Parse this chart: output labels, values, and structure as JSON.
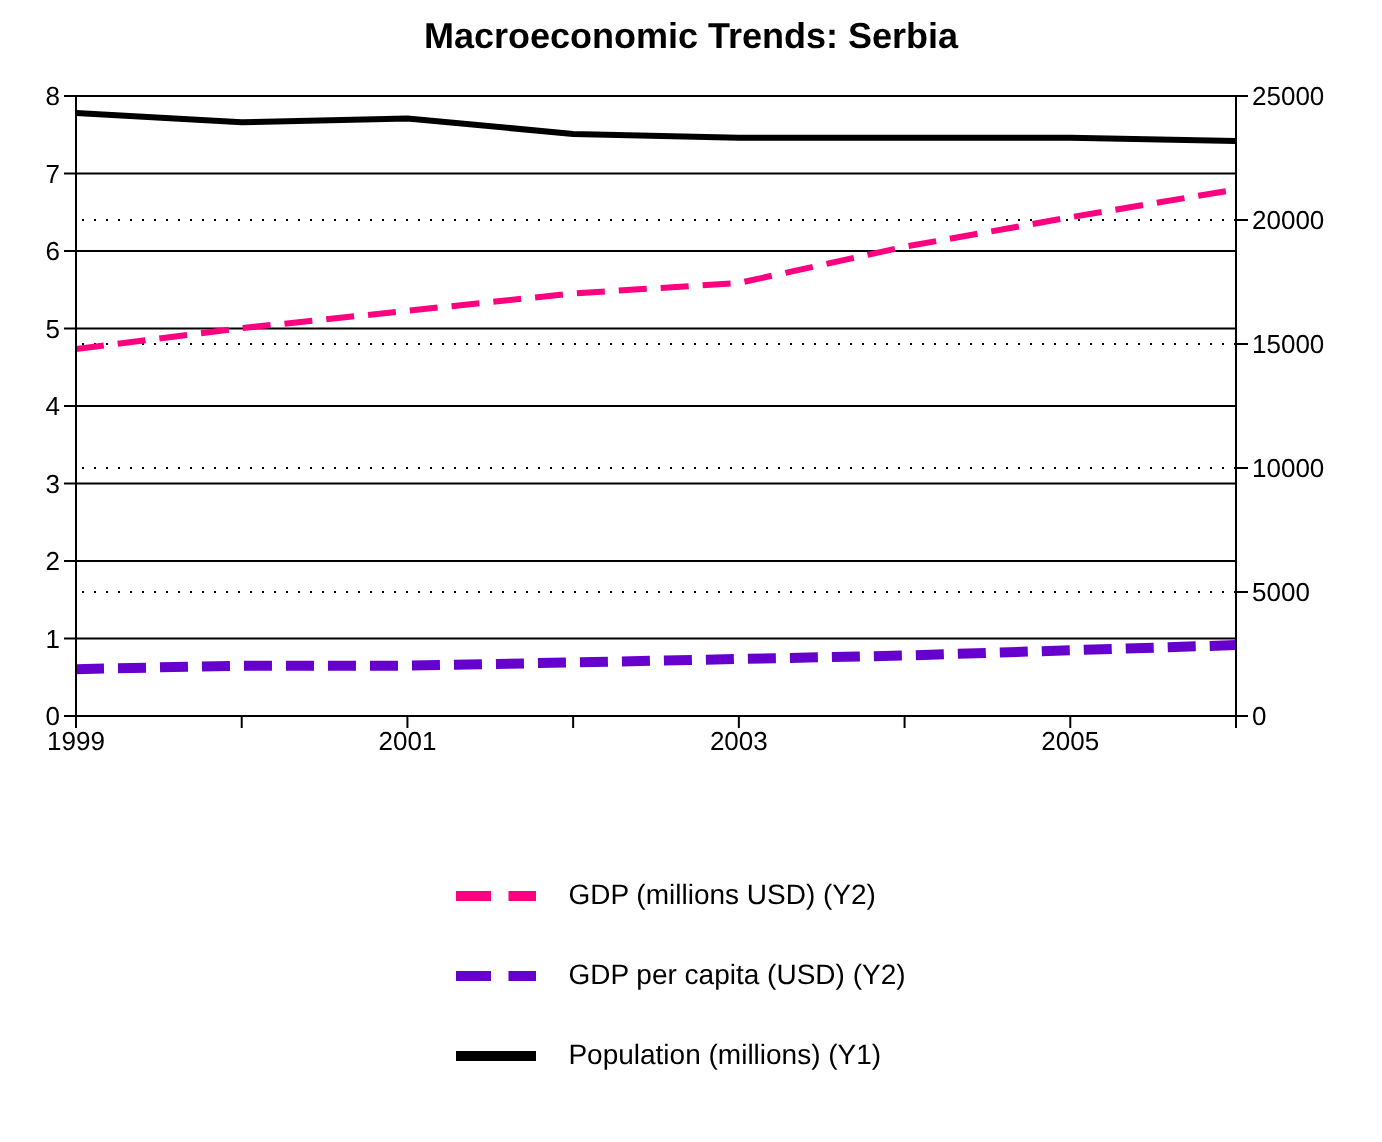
{
  "chart_data": {
    "type": "line",
    "title": "Macroeconomic Trends: Serbia",
    "x": [
      1999,
      2000,
      2001,
      2002,
      2003,
      2004,
      2005,
      2006
    ],
    "xlim": [
      1999,
      2006
    ],
    "xticks": [
      1999,
      {
        "value": 2000,
        "label": null
      },
      2001,
      {
        "value": 2002,
        "label": null
      },
      2003,
      {
        "value": 2004,
        "label": null
      },
      2005,
      {
        "value": 2006,
        "label": null
      }
    ],
    "ylim": [
      0,
      8
    ],
    "yticks": [
      0,
      1,
      2,
      3,
      4,
      5,
      6,
      7,
      8
    ],
    "y2lim": [
      0,
      25000
    ],
    "y2ticks": [
      0,
      5000,
      10000,
      15000,
      20000,
      25000
    ],
    "grid": "y",
    "legend": "bottom",
    "marker": "none",
    "series": [
      {
        "name": "Population (millions) (Y1)",
        "color": "#000000",
        "line_style": "solid",
        "values": [
          7.78,
          7.66,
          7.71,
          7.51,
          7.46,
          7.46,
          7.46,
          7.42
        ]
      },
      {
        "name": "GDP (millions USD) (Y2)",
        "color": "#ff0080",
        "line_style": "dashed",
        "axis": "y2",
        "values": [
          14800,
          15640,
          16340,
          17040,
          17460,
          18920,
          20110,
          21230
        ]
      },
      {
        "name": "GDP per capita (USD) (Y2)",
        "color": "#6600cc",
        "line_style": "dashed",
        "axis": "y2",
        "values": [
          1890,
          2030,
          2030,
          2160,
          2300,
          2440,
          2650,
          2860
        ]
      }
    ]
  }
}
